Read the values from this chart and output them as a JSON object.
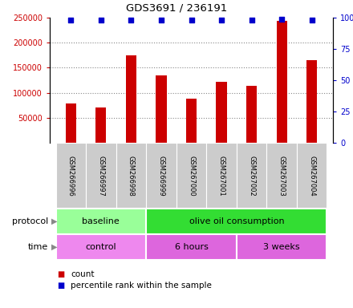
{
  "title": "GDS3691 / 236191",
  "samples": [
    "GSM266996",
    "GSM266997",
    "GSM266998",
    "GSM266999",
    "GSM267000",
    "GSM267001",
    "GSM267002",
    "GSM267003",
    "GSM267004"
  ],
  "counts": [
    78000,
    70000,
    175000,
    135000,
    88000,
    122000,
    114000,
    244000,
    165000
  ],
  "percentile_ranks": [
    98,
    98,
    98,
    98,
    98,
    98,
    98,
    99,
    98
  ],
  "ylim_left": [
    0,
    250000
  ],
  "ylim_right": [
    0,
    100
  ],
  "yticks_left": [
    50000,
    100000,
    150000,
    200000,
    250000
  ],
  "yticks_right": [
    0,
    25,
    50,
    75,
    100
  ],
  "bar_color": "#cc0000",
  "dot_color": "#0000cc",
  "protocol_labels": [
    {
      "label": "baseline",
      "start": 0,
      "end": 3,
      "color": "#99ff99"
    },
    {
      "label": "olive oil consumption",
      "start": 3,
      "end": 9,
      "color": "#33dd33"
    }
  ],
  "time_labels": [
    {
      "label": "control",
      "start": 0,
      "end": 3,
      "color": "#ee88ee"
    },
    {
      "label": "6 hours",
      "start": 3,
      "end": 6,
      "color": "#dd66dd"
    },
    {
      "label": "3 weeks",
      "start": 6,
      "end": 9,
      "color": "#dd66dd"
    }
  ],
  "legend_count_label": "count",
  "legend_pct_label": "percentile rank within the sample",
  "bar_color_label": "#cc0000",
  "dot_color_label": "#0000cc",
  "left_tick_color": "#cc0000",
  "right_tick_color": "#0000cc",
  "grid_color": "#888888",
  "tick_area_bg": "#cccccc",
  "arrow_color": "#888888"
}
